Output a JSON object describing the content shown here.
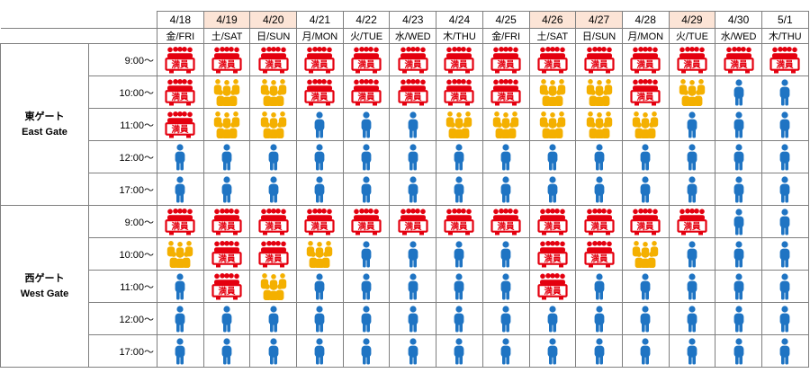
{
  "legend": {
    "full_text": "満員"
  },
  "colors": {
    "full": "#e4000f",
    "busy": "#f4b000",
    "available": "#1f74c3",
    "weekend_header": "#fce4d6",
    "border": "#7f7f7f"
  },
  "dates": [
    {
      "date": "4/18",
      "dow": "金/FRI",
      "weekend": false
    },
    {
      "date": "4/19",
      "dow": "土/SAT",
      "weekend": true
    },
    {
      "date": "4/20",
      "dow": "日/SUN",
      "weekend": true
    },
    {
      "date": "4/21",
      "dow": "月/MON",
      "weekend": false
    },
    {
      "date": "4/22",
      "dow": "火/TUE",
      "weekend": false
    },
    {
      "date": "4/23",
      "dow": "水/WED",
      "weekend": false
    },
    {
      "date": "4/24",
      "dow": "木/THU",
      "weekend": false
    },
    {
      "date": "4/25",
      "dow": "金/FRI",
      "weekend": false
    },
    {
      "date": "4/26",
      "dow": "土/SAT",
      "weekend": true
    },
    {
      "date": "4/27",
      "dow": "日/SUN",
      "weekend": true
    },
    {
      "date": "4/28",
      "dow": "月/MON",
      "weekend": false
    },
    {
      "date": "4/29",
      "dow": "火/TUE",
      "weekend": true
    },
    {
      "date": "4/30",
      "dow": "水/WED",
      "weekend": false
    },
    {
      "date": "5/1",
      "dow": "木/THU",
      "weekend": false
    }
  ],
  "gates": [
    {
      "name_ja": "東ゲート",
      "name_en": "East Gate",
      "slots": [
        {
          "time": "9:00～",
          "status": [
            "full",
            "full",
            "full",
            "full",
            "full",
            "full",
            "full",
            "full",
            "full",
            "full",
            "full",
            "full",
            "full",
            "full"
          ]
        },
        {
          "time": "10:00～",
          "status": [
            "full",
            "busy",
            "busy",
            "full",
            "full",
            "full",
            "full",
            "full",
            "busy",
            "busy",
            "full",
            "busy",
            "available",
            "available"
          ]
        },
        {
          "time": "11:00～",
          "status": [
            "full",
            "busy",
            "busy",
            "available",
            "available",
            "available",
            "busy",
            "busy",
            "busy",
            "busy",
            "busy",
            "available",
            "available",
            "available"
          ]
        },
        {
          "time": "12:00～",
          "status": [
            "available",
            "available",
            "available",
            "available",
            "available",
            "available",
            "available",
            "available",
            "available",
            "available",
            "available",
            "available",
            "available",
            "available"
          ]
        },
        {
          "time": "17:00～",
          "status": [
            "available",
            "available",
            "available",
            "available",
            "available",
            "available",
            "available",
            "available",
            "available",
            "available",
            "available",
            "available",
            "available",
            "available"
          ]
        }
      ]
    },
    {
      "name_ja": "西ゲート",
      "name_en": "West Gate",
      "slots": [
        {
          "time": "9:00～",
          "status": [
            "full",
            "full",
            "full",
            "full",
            "full",
            "full",
            "full",
            "full",
            "full",
            "full",
            "full",
            "full",
            "available",
            "available"
          ]
        },
        {
          "time": "10:00～",
          "status": [
            "busy",
            "full",
            "full",
            "busy",
            "available",
            "available",
            "available",
            "available",
            "full",
            "full",
            "busy",
            "available",
            "available",
            "available"
          ]
        },
        {
          "time": "11:00～",
          "status": [
            "available",
            "full",
            "busy",
            "available",
            "available",
            "available",
            "available",
            "available",
            "full",
            "available",
            "available",
            "available",
            "available",
            "available"
          ]
        },
        {
          "time": "12:00～",
          "status": [
            "available",
            "available",
            "available",
            "available",
            "available",
            "available",
            "available",
            "available",
            "available",
            "available",
            "available",
            "available",
            "available",
            "available"
          ]
        },
        {
          "time": "17:00～",
          "status": [
            "available",
            "available",
            "available",
            "available",
            "available",
            "available",
            "available",
            "available",
            "available",
            "available",
            "available",
            "available",
            "available",
            "available"
          ]
        }
      ]
    }
  ]
}
